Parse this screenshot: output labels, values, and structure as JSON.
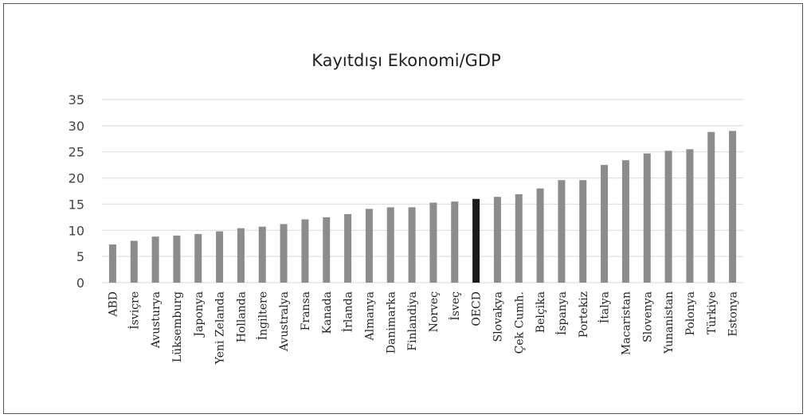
{
  "chart_data": {
    "type": "bar",
    "title": "Kayıtdışı Ekonomi/GDP",
    "xlabel": "",
    "ylabel": "",
    "ylim": [
      0,
      35
    ],
    "yticks": [
      0,
      5,
      10,
      15,
      20,
      25,
      30,
      35
    ],
    "grid": true,
    "legend": "none",
    "categories": [
      "ABD",
      "İsviçre",
      "Avusturya",
      "Lüksemburg",
      "Japonya",
      "Yeni Zelanda",
      "Hollanda",
      "İngiltere",
      "Avustralya",
      "Fransa",
      "Kanada",
      "İrlanda",
      "Almanya",
      "Danimarka",
      "Finlandiya",
      "Norveç",
      "İsveç",
      "OECD",
      "Slovakya",
      "Çek Cumh.",
      "Belçika",
      "İspanya",
      "Portekiz",
      "İtalya",
      "Macaristan",
      "Slovenya",
      "Yunanistan",
      "Polonya",
      "Türkiye",
      "Estonya"
    ],
    "values": [
      7.3,
      8.0,
      8.8,
      9.0,
      9.3,
      9.8,
      10.4,
      10.7,
      11.2,
      12.1,
      12.5,
      13.1,
      14.1,
      14.4,
      14.4,
      15.3,
      15.5,
      16.0,
      16.4,
      16.9,
      18.0,
      19.6,
      19.6,
      22.5,
      23.4,
      24.7,
      25.2,
      25.5,
      28.8,
      29.0
    ],
    "colors": {
      "bar": "#8c8c8c",
      "highlight_bar": "#1a1a1a",
      "highlight_category": "OECD",
      "grid": "#d9d9d9"
    }
  }
}
